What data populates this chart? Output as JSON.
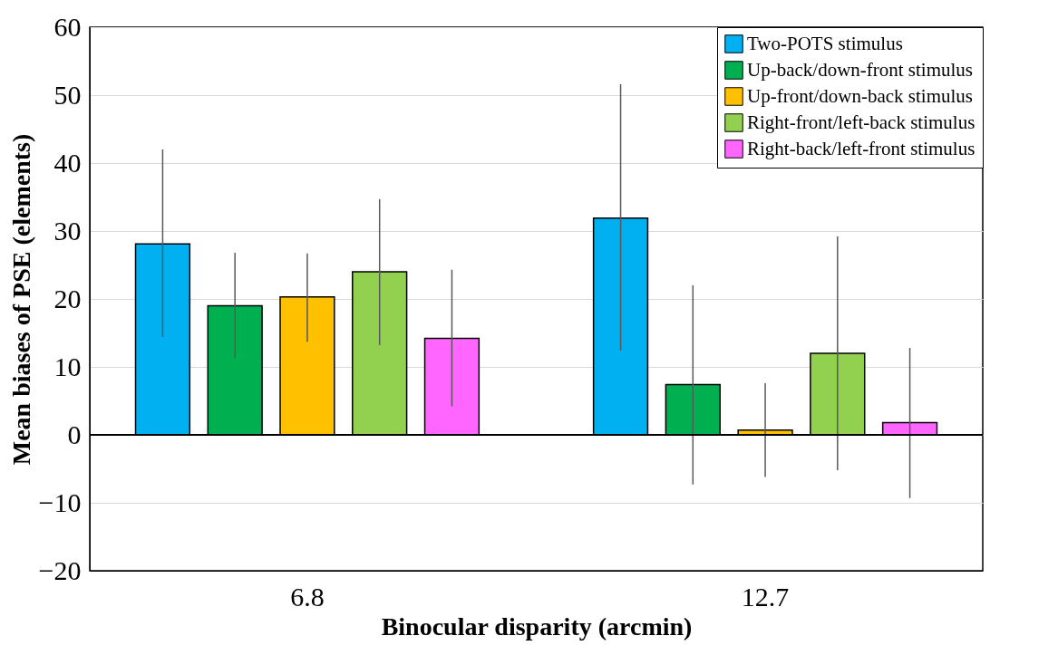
{
  "chart_data": {
    "type": "bar",
    "xlabel": "Binocular disparity (arcmin)",
    "ylabel": "Mean biases of PSE (elements)",
    "categories": [
      "6.8",
      "12.7"
    ],
    "series": [
      {
        "name": "Two-POTS stimulus",
        "color": "#00b0f0",
        "values": [
          28.1,
          31.9
        ],
        "errors": [
          [
            14.4,
            42.0
          ],
          [
            12.4,
            51.6
          ]
        ]
      },
      {
        "name": "Up-back/down-front stimulus",
        "color": "#00b050",
        "values": [
          19.0,
          7.4
        ],
        "errors": [
          [
            11.3,
            26.8
          ],
          [
            -7.3,
            22.0
          ]
        ]
      },
      {
        "name": "Up-front/down-back stimulus",
        "color": "#ffc000",
        "values": [
          20.3,
          0.7
        ],
        "errors": [
          [
            13.7,
            26.7
          ],
          [
            -6.2,
            7.6
          ]
        ]
      },
      {
        "name": "Right-front/left-back stimulus",
        "color": "#92d050",
        "values": [
          24.0,
          12.0
        ],
        "errors": [
          [
            13.2,
            34.7
          ],
          [
            -5.2,
            29.2
          ]
        ]
      },
      {
        "name": "Right-back/left-front stimulus",
        "color": "#ff66ff",
        "values": [
          14.2,
          1.8
        ],
        "errors": [
          [
            4.2,
            24.3
          ],
          [
            -9.3,
            12.8
          ]
        ]
      }
    ],
    "ylim": [
      -20,
      60
    ],
    "yticks": [
      -20,
      -10,
      0,
      10,
      20,
      30,
      40,
      50,
      60
    ],
    "grid": "y",
    "legend": "top right",
    "ref_lines": [
      {
        "axis": "y",
        "value": 0,
        "color": "#000000"
      }
    ]
  }
}
